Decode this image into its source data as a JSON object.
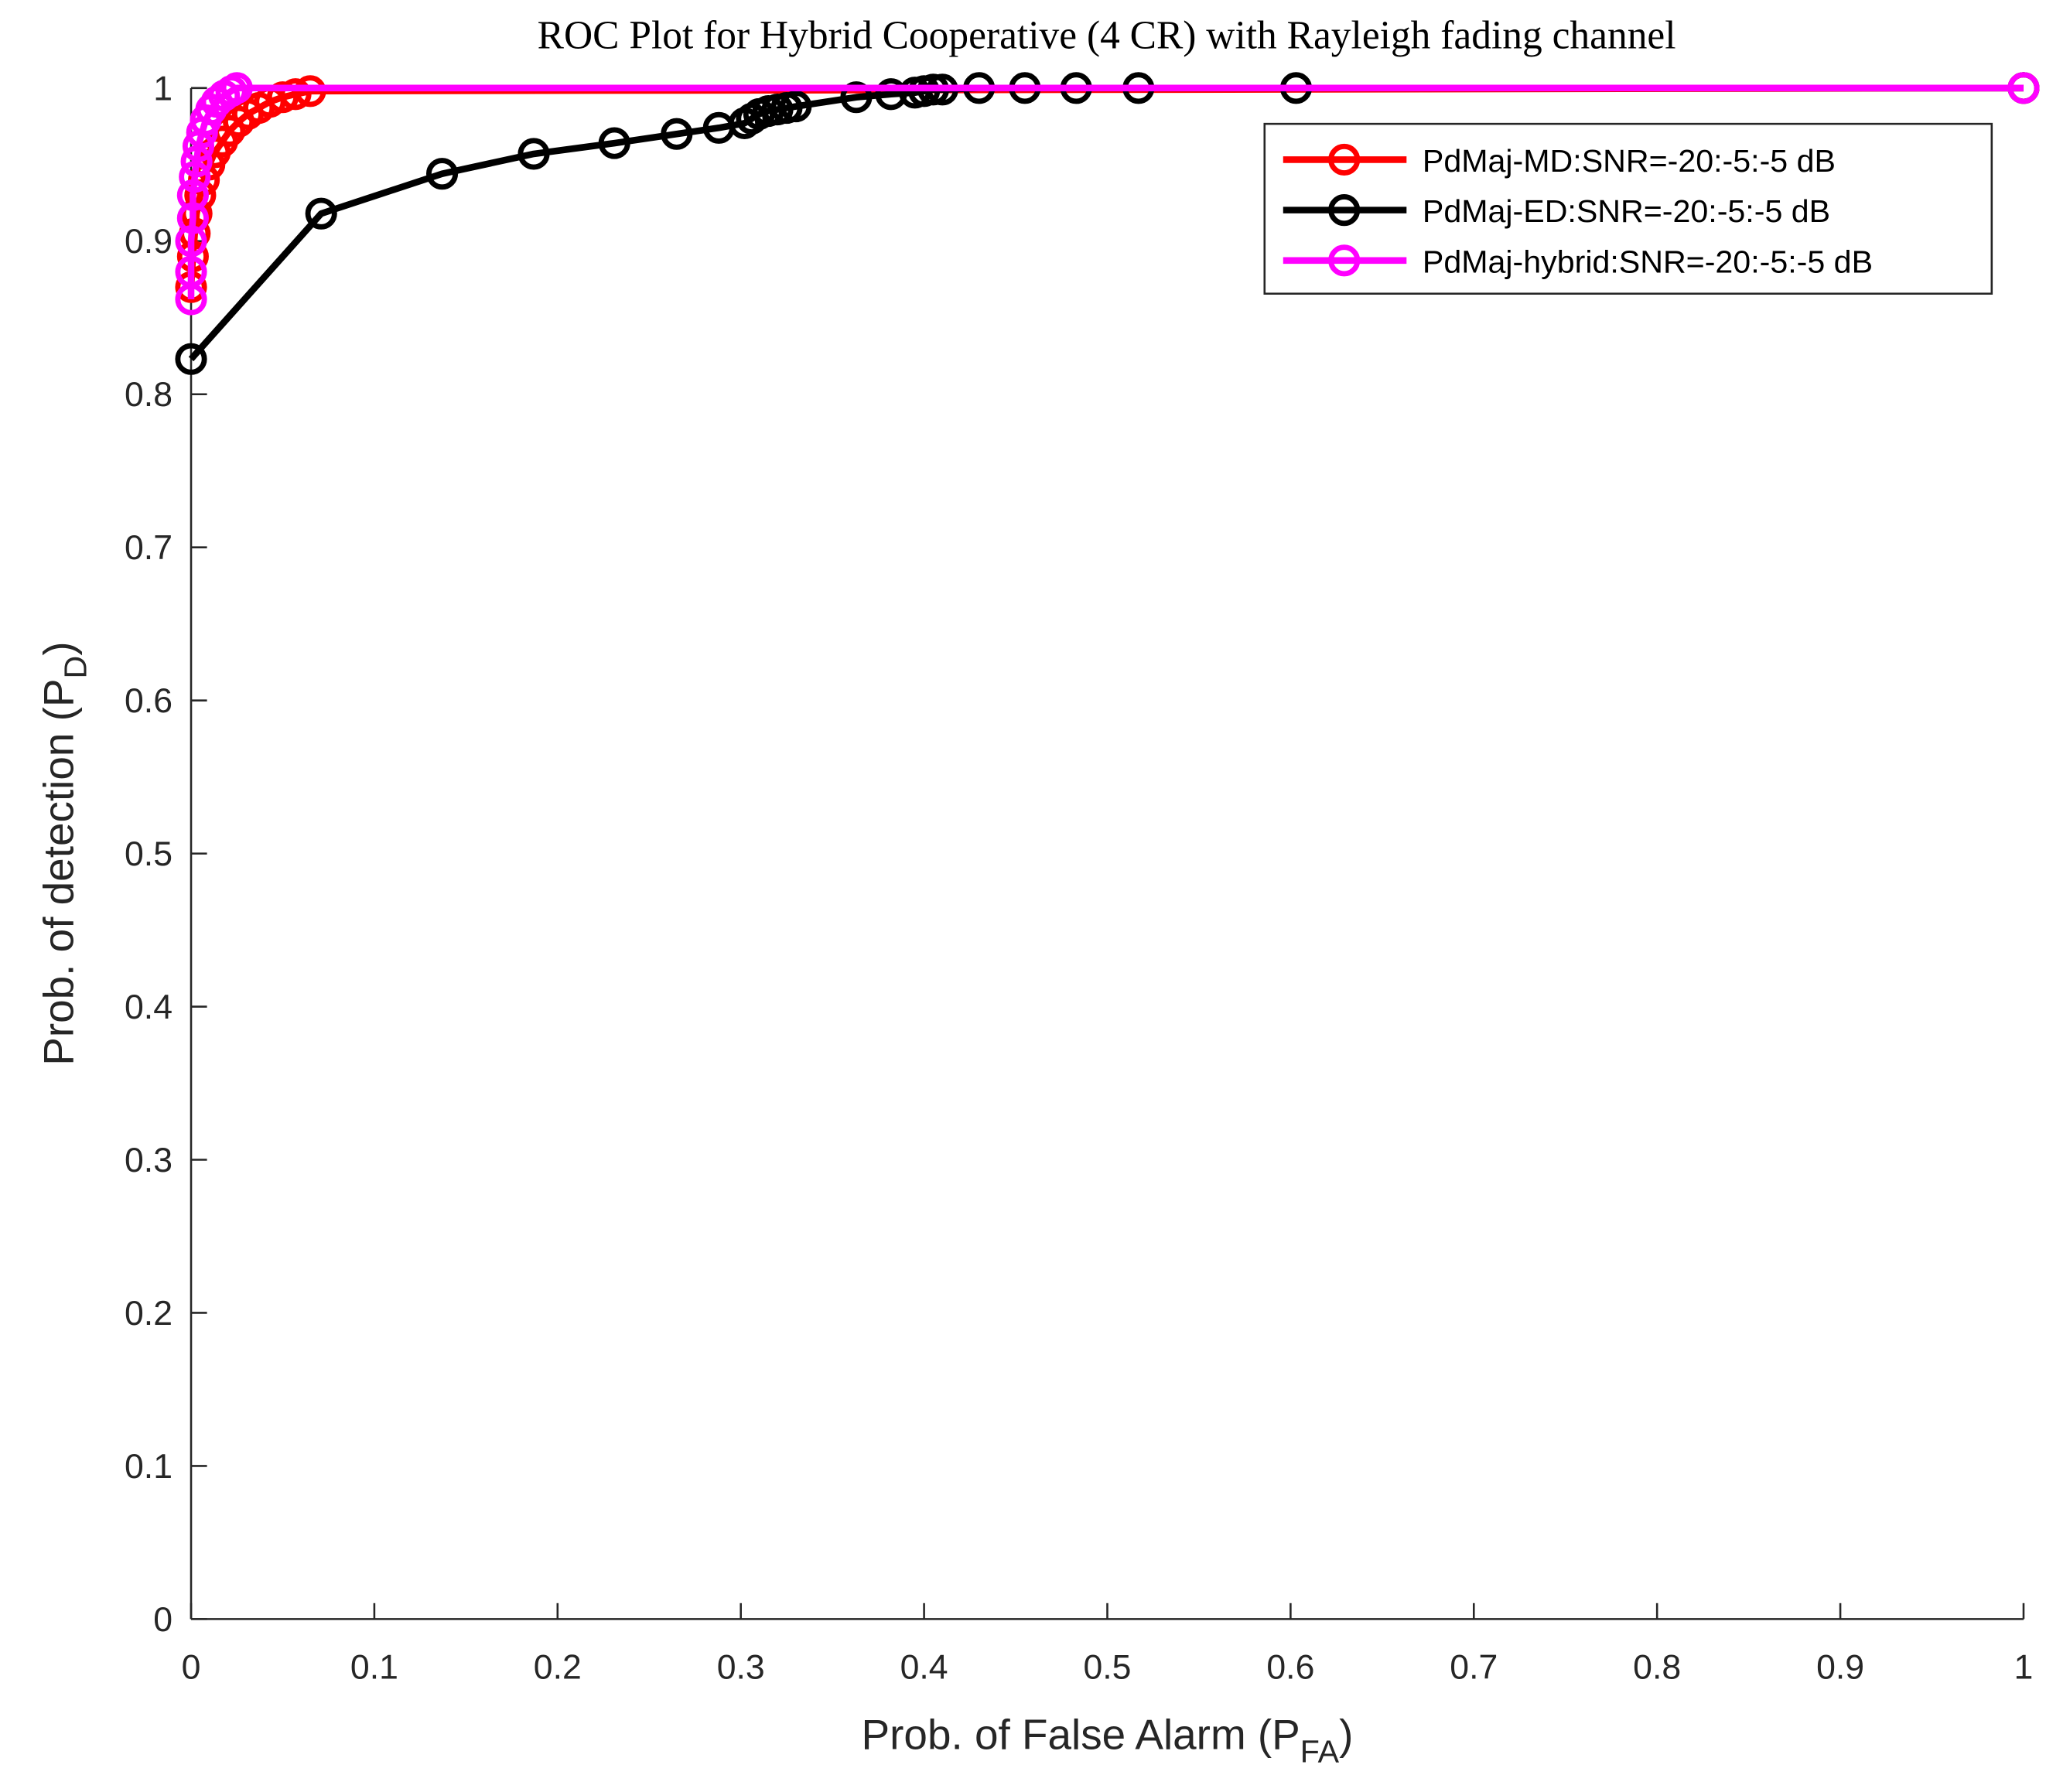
{
  "chart_data": {
    "type": "line",
    "title": "ROC Plot for Hybrid Cooperative (4 CR) with Rayleigh fading channel",
    "xlabel": {
      "text": "Prob. of False Alarm (P",
      "sub": "FA",
      "end": ")"
    },
    "ylabel": {
      "text": "Prob. of detection (P",
      "sub": "D",
      "end": ")"
    },
    "xlim": [
      0,
      1
    ],
    "ylim": [
      0,
      1
    ],
    "xticks": [
      0,
      0.1,
      0.2,
      0.3,
      0.4,
      0.5,
      0.6,
      0.7,
      0.8,
      0.9,
      1
    ],
    "yticks": [
      0,
      0.1,
      0.2,
      0.3,
      0.4,
      0.5,
      0.6,
      0.7,
      0.8,
      0.9,
      1
    ],
    "grid": false,
    "legend": "northeast",
    "series": [
      {
        "name": "PdMaj-MD:SNR=-20:-5:-5 dB",
        "color": "#ff0000",
        "x": [
          0,
          0.001,
          0.002,
          0.003,
          0.005,
          0.007,
          0.01,
          0.013,
          0.017,
          0.021,
          0.026,
          0.031,
          0.037,
          0.043,
          0.05,
          0.057,
          0.065,
          1
        ],
        "values": [
          0.87,
          0.89,
          0.905,
          0.918,
          0.93,
          0.94,
          0.95,
          0.958,
          0.965,
          0.972,
          0.978,
          0.983,
          0.987,
          0.991,
          0.994,
          0.996,
          0.998,
          1
        ]
      },
      {
        "name": "PdMaj-ED:SNR=-20:-5:-5 dB",
        "color": "#000000",
        "x": [
          0,
          0.071,
          0.137,
          0.187,
          0.231,
          0.265,
          0.288,
          0.302,
          0.306,
          0.31,
          0.315,
          0.32,
          0.325,
          0.33,
          0.363,
          0.382,
          0.395,
          0.4,
          0.405,
          0.41,
          0.43,
          0.455,
          0.483,
          0.517,
          0.603,
          1
        ],
        "values": [
          0.823,
          0.918,
          0.944,
          0.957,
          0.964,
          0.97,
          0.974,
          0.977,
          0.98,
          0.983,
          0.985,
          0.986,
          0.987,
          0.988,
          0.994,
          0.996,
          0.997,
          0.998,
          0.999,
          0.999,
          1,
          1,
          1,
          1,
          1,
          1
        ]
      },
      {
        "name": "PdMaj-hybrid:SNR=-20:-5:-5 dB",
        "color": "#ff00ff",
        "x": [
          0,
          0,
          0,
          0.001,
          0.001,
          0.002,
          0.003,
          0.004,
          0.006,
          0.008,
          0.011,
          0.014,
          0.018,
          0.022,
          0.025,
          1
        ],
        "values": [
          0.862,
          0.88,
          0.9,
          0.915,
          0.93,
          0.942,
          0.952,
          0.962,
          0.971,
          0.979,
          0.986,
          0.991,
          0.995,
          0.998,
          1,
          1
        ]
      }
    ]
  }
}
